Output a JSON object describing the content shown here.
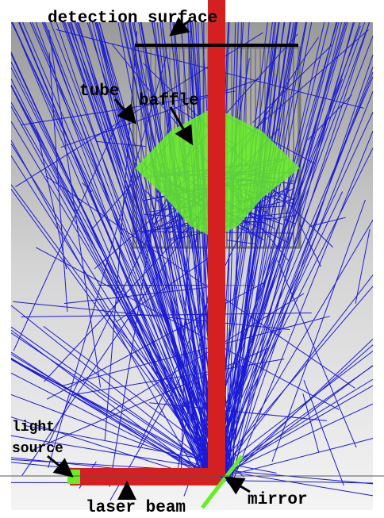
{
  "labels": {
    "detection_surface": "detection surface",
    "tube": "tube",
    "baffle": "baffle",
    "light_source": [
      "light",
      "source"
    ],
    "laser_beam": "laser beam",
    "mirror": "mirror"
  }
}
